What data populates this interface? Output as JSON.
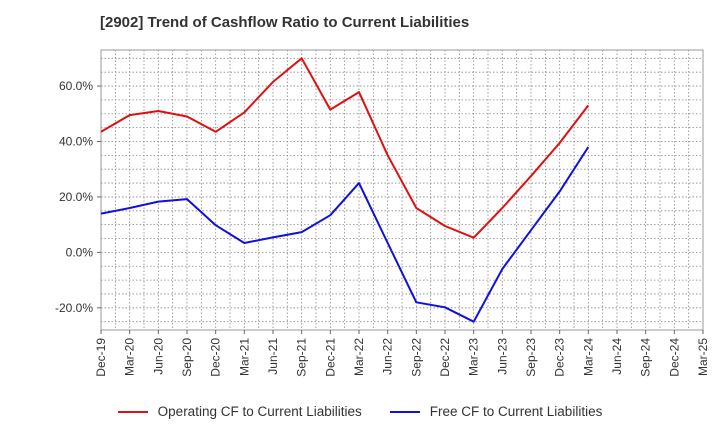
{
  "chart_data": {
    "type": "line",
    "title": "[2902]  Trend of Cashflow Ratio to Current Liabilities",
    "xlabel": "",
    "ylabel": "",
    "ylim": [
      -28,
      73
    ],
    "y_ticks": [
      "60.0%",
      "40.0%",
      "20.0%",
      "0.0%",
      "-20.0%"
    ],
    "y_tick_values": [
      60,
      40,
      20,
      0,
      -20
    ],
    "categories": [
      "Dec-19",
      "Mar-20",
      "Jun-20",
      "Sep-20",
      "Dec-20",
      "Mar-21",
      "Jun-21",
      "Sep-21",
      "Dec-21",
      "Mar-22",
      "Jun-22",
      "Sep-22",
      "Dec-22",
      "Mar-23",
      "Jun-23",
      "Sep-23",
      "Dec-23",
      "Mar-24",
      "Jun-24",
      "Sep-24",
      "Dec-24",
      "Mar-25"
    ],
    "x_tick_labels": [
      "Dec-19",
      "Mar-20",
      "Jun-20",
      "Sep-20",
      "Dec-20",
      "Mar-21",
      "Jun-21",
      "Sep-21",
      "Dec-21",
      "Mar-22",
      "Jun-22",
      "Sep-22",
      "Dec-22",
      "Mar-23",
      "Jun-23",
      "Sep-23",
      "Dec-23",
      "Mar-24",
      "Jun-24",
      "Sep-24",
      "Dec-24",
      "Mar-25"
    ],
    "grid": true,
    "legend_position": "bottom",
    "series": [
      {
        "name": "Operating CF to Current Liabilities",
        "color": "#e01010",
        "values": [
          43.5,
          49.5,
          51,
          49,
          43.5,
          50.5,
          61.5,
          70,
          51.5,
          57.8,
          35,
          16,
          9.5,
          5.3,
          16,
          27.5,
          39.5,
          53,
          null,
          null,
          null,
          null
        ]
      },
      {
        "name": "Free CF to Current Liabilities",
        "color": "#1010e0",
        "values": [
          14,
          16,
          18.3,
          19.2,
          9.8,
          3.4,
          5.4,
          7.3,
          13.4,
          25,
          3.4,
          -18,
          -19.8,
          -25,
          -6,
          8,
          22,
          38,
          null,
          null,
          null,
          null
        ]
      }
    ]
  }
}
